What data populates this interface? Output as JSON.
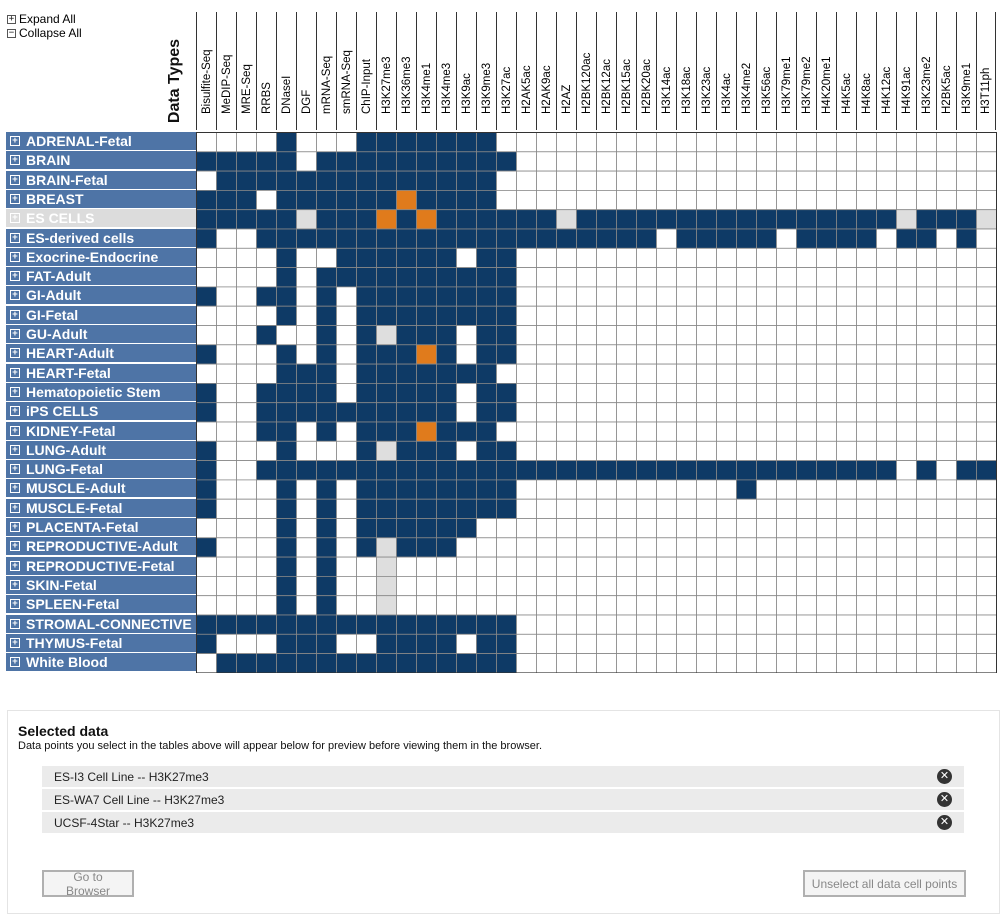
{
  "controls": {
    "expand_all": "Expand All",
    "collapse_all": "Collapse All"
  },
  "matrix": {
    "axis_label": "Data Types",
    "columns": [
      "Bisulfite-Seq",
      "MeDIP-Seq",
      "MRE-Seq",
      "RRBS",
      "DNaseI",
      "DGF",
      "mRNA-Seq",
      "smRNA-Seq",
      "ChIP-Input",
      "H3K27me3",
      "H3K36me3",
      "H3K4me1",
      "H3K4me3",
      "H3K9ac",
      "H3K9me3",
      "H3K27ac",
      "H2AK5ac",
      "H2AK9ac",
      "H2AZ",
      "H2BK120ac",
      "H2BK12ac",
      "H2BK15ac",
      "H2BK20ac",
      "H3K14ac",
      "H3K18ac",
      "H3K23ac",
      "H3K4ac",
      "H3K4me2",
      "H3K56ac",
      "H3K79me1",
      "H3K79me2",
      "H4K20me1",
      "H4K5ac",
      "H4K8ac",
      "H4K12ac",
      "H4K91ac",
      "H3K23me2",
      "H2BK5ac",
      "H3K9me1",
      "H3T11ph"
    ],
    "legend_colors": {
      "available": "#0e3a66",
      "selected": "#e07b1c",
      "disabled": "#dedede",
      "empty": "#ffffff"
    },
    "rows": [
      {
        "label": "ADRENAL-Fetal",
        "cells": "0000100011111110000000000000000000000000"
      },
      {
        "label": "BRAIN",
        "cells": "1111101111111111000000000000000000000000"
      },
      {
        "label": "BRAIN-Fetal",
        "cells": "0111111111111110000000000000000000000000"
      },
      {
        "label": "BREAST",
        "cells": "1110111111211110000000000000000000000000"
      },
      {
        "label": "ES CELLS",
        "selected": true,
        "cells": "1111131112121111113111111111111111131113"
      },
      {
        "label": "ES-derived cells",
        "cells": "1001111111111111111111101111101111011010"
      },
      {
        "label": "Exocrine-Endocrine",
        "cells": "0000100111111011000000000000000000000000"
      },
      {
        "label": "FAT-Adult",
        "cells": "0000101111111111000000000000000000000000"
      },
      {
        "label": "GI-Adult",
        "cells": "1001101011111111000000000000000000000000"
      },
      {
        "label": "GI-Fetal",
        "cells": "0000101011111111000000000000000000000000"
      },
      {
        "label": "GU-Adult",
        "cells": "0001001013111011000000000000000000000000"
      },
      {
        "label": "HEART-Adult",
        "cells": "1000101011121011000000000000000000000000"
      },
      {
        "label": "HEART-Fetal",
        "cells": "0000111011111110000000000000000000000000"
      },
      {
        "label": "Hematopoietic Stem",
        "cells": "1001111011111011000000000000000000000000"
      },
      {
        "label": "iPS CELLS",
        "cells": "1001111111111011000000000000000000000000"
      },
      {
        "label": "KIDNEY-Fetal",
        "cells": "0001101011121110000000000000000000000000"
      },
      {
        "label": "LUNG-Adult",
        "cells": "1000100013111011000000000000000000000000"
      },
      {
        "label": "LUNG-Fetal",
        "cells": "1001111111111111111111111111111111101011"
      },
      {
        "label": "MUSCLE-Adult",
        "cells": "1000101011111111000000000001000000000000"
      },
      {
        "label": "MUSCLE-Fetal",
        "cells": "1000101011111111000000000000000000000000"
      },
      {
        "label": "PLACENTA-Fetal",
        "cells": "0000101011111100000000000000000000000000"
      },
      {
        "label": "REPRODUCTIVE-Adult",
        "cells": "1000101013111000000000000000000000000000"
      },
      {
        "label": "REPRODUCTIVE-Fetal",
        "cells": "0000101003000000000000000000000000000000"
      },
      {
        "label": "SKIN-Fetal",
        "cells": "0000101003000000000000000000000000000000"
      },
      {
        "label": "SPLEEN-Fetal",
        "cells": "0000101003000000000000000000000000000000"
      },
      {
        "label": "STROMAL-CONNECTIVE",
        "cells": "1111111111111111000000000000000000000000"
      },
      {
        "label": "THYMUS-Fetal",
        "cells": "1000111001111011000000000000000000000000"
      },
      {
        "label": "White Blood",
        "cells": "0111111111111111000000000000000000000000"
      }
    ]
  },
  "selected_panel": {
    "title": "Selected data",
    "description": "Data points you select in the tables above will appear below for preview before viewing them in the browser.",
    "items": [
      "ES-I3 Cell Line -- H3K27me3",
      "ES-WA7 Cell Line -- H3K27me3",
      "UCSF-4Star -- H3K27me3"
    ],
    "go_button": "Go to Browser",
    "unselect_button": "Unselect all data cell points"
  }
}
